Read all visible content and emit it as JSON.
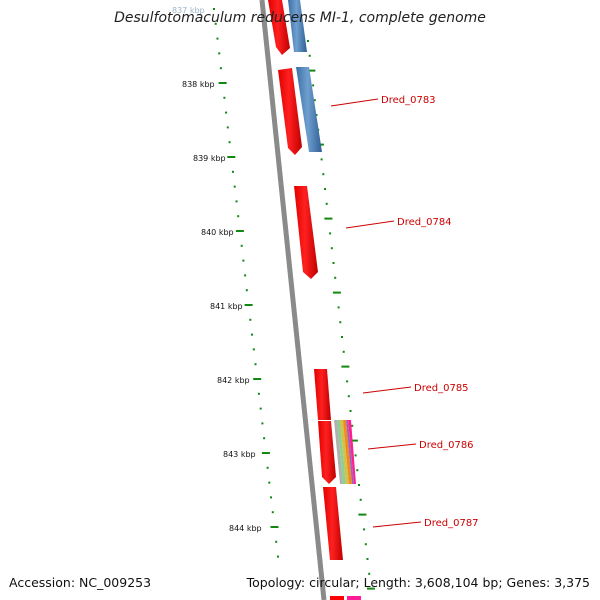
{
  "title": "Desulfotomaculum reducens MI-1, complete genome",
  "footer": {
    "accession": "Accession: NC_009253",
    "summary": "Topology: circular; Length: 3,608,104 bp; Genes: 3,375"
  },
  "scale": {
    "tick_color": "#118811",
    "labels": [
      "837 kbp",
      "838 kbp",
      "839 kbp",
      "840 kbp",
      "841 kbp",
      "842 kbp",
      "843 kbp",
      "844 kbp"
    ]
  },
  "backbone": {
    "color": "#888888"
  },
  "genes": [
    {
      "label": "Dred_0783",
      "color": "#cc0000"
    },
    {
      "label": "Dred_0784",
      "color": "#cc0000"
    },
    {
      "label": "Dred_0785",
      "color": "#cc0000"
    },
    {
      "label": "Dred_0786",
      "color": "#cc0000"
    },
    {
      "label": "Dred_0787",
      "color": "#cc0000"
    }
  ],
  "colors": {
    "cds_red": "#ff0000",
    "cds_blue": "#4a7fb5",
    "label_red": "#cc0000"
  }
}
